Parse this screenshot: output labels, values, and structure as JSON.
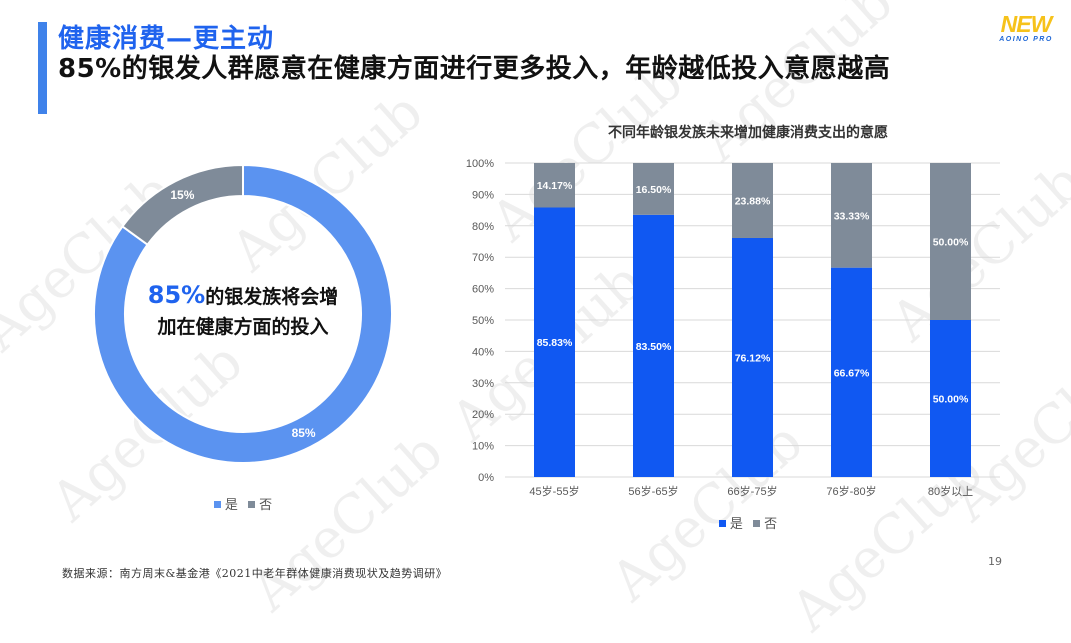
{
  "colors": {
    "accent": "#3f82ea",
    "title_blue": "#1f63ee",
    "logo_yellow": "#f6c21b",
    "logo_blue": "#1d66d6",
    "series_yes": "#1058f2",
    "series_no": "#7f8b99",
    "donut_yes": "#5b93f0",
    "donut_no": "#7f8b99"
  },
  "header": {
    "subtitle": "健康消费—更主动",
    "headline": "85%的银发人群愿意在健康方面进行更多投入，年龄越低投入意愿越高",
    "logo_main": "NEW",
    "logo_sub": "AOINO PRO"
  },
  "watermark_text": "AgeClub",
  "donut": {
    "center_highlight": "85%",
    "center_line1_rest": "的银发族将会增",
    "center_line2": "加在健康方面的投入"
  },
  "legend": {
    "yes": "是",
    "no": "否"
  },
  "footer": {
    "source": "数据来源：南方周末&基金港《2021中老年群体健康消费现状及趋势调研》",
    "page": "19"
  },
  "chart_data": [
    {
      "type": "pie",
      "donut": true,
      "labels": [
        "是",
        "否"
      ],
      "values": [
        85,
        15
      ],
      "data_labels": [
        "85%",
        "15%"
      ],
      "legend": "bottom"
    },
    {
      "type": "bar",
      "stacked": true,
      "title": "不同年龄银发族未来增加健康消费支出的意愿",
      "categories": [
        "45岁-55岁",
        "56岁-65岁",
        "66岁-75岁",
        "76岁-80岁",
        "80岁以上"
      ],
      "series": [
        {
          "name": "是",
          "values": [
            85.83,
            83.5,
            76.12,
            66.67,
            50.0
          ],
          "labels": [
            "85.83%",
            "83.50%",
            "76.12%",
            "66.67%",
            "50.00%"
          ]
        },
        {
          "name": "否",
          "values": [
            14.17,
            16.5,
            23.88,
            33.33,
            50.0
          ],
          "labels": [
            "14.17%",
            "16.50%",
            "23.88%",
            "33.33%",
            "50.00%"
          ]
        }
      ],
      "y_ticks": [
        "0%",
        "10%",
        "20%",
        "30%",
        "40%",
        "50%",
        "60%",
        "70%",
        "80%",
        "90%",
        "100%"
      ],
      "ylim": [
        0,
        100
      ],
      "grid": true,
      "legend": "bottom"
    }
  ]
}
